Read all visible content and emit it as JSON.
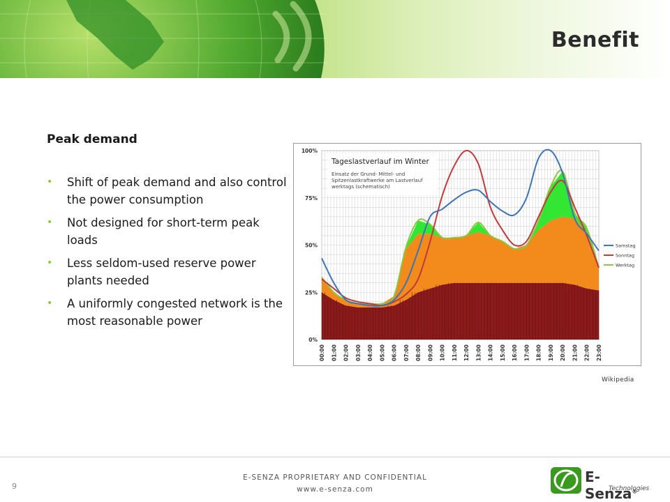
{
  "slide": {
    "title": "Benefit",
    "section_heading": "Peak demand",
    "bullets": [
      "Shift of peak demand and also control the power consumption",
      "Not designed for short-term peak loads",
      "Less seldom-used reserve power plants needed",
      "A uniformly congested network is the most reasonable power"
    ],
    "source_caption": "Wikipedia",
    "page_number": "9"
  },
  "footer": {
    "confidential": "E-SENZA PROPRIETARY AND CONFIDENTIAL",
    "website": "www.e-senza.com"
  },
  "logo": {
    "wordmark": "E-Senza",
    "trademark": "®",
    "subtitle": "Technologies"
  },
  "colors": {
    "accent_green": "#8dc63f",
    "base_load": "#8b1a1a",
    "mid_load": "#f28a1c",
    "peak_load": "#33e633",
    "samstag": "#3f74b4",
    "sonntag": "#c0393b",
    "werktag": "#8dc63f"
  },
  "chart_data": {
    "type": "area",
    "title": "Tageslastverlauf im Winter",
    "subtitle": "Einsatz der Grund- Mittel- und Spitzenlastkraftwerke am Lastverlauf werktags (schematisch)",
    "x": [
      "00:00",
      "01:00",
      "02:00",
      "03:00",
      "04:00",
      "05:00",
      "06:00",
      "07:00",
      "08:00",
      "09:00",
      "10:00",
      "11:00",
      "12:00",
      "13:00",
      "14:00",
      "15:00",
      "16:00",
      "17:00",
      "18:00",
      "19:00",
      "20:00",
      "21:00",
      "22:00",
      "23:00"
    ],
    "y_ticks": [
      "0%",
      "25%",
      "50%",
      "75%",
      "100%"
    ],
    "ylim": [
      0,
      100
    ],
    "grid": true,
    "legend_position": "right",
    "stacked_areas": [
      {
        "values": [
          25,
          21,
          18,
          17,
          17,
          17,
          18,
          21,
          25,
          27,
          29,
          30,
          30,
          30,
          30,
          30,
          30,
          30,
          30,
          30,
          30,
          29,
          27,
          26
        ]
      },
      {
        "values": [
          8,
          4,
          3,
          2,
          2,
          2,
          5,
          27,
          31,
          29,
          25,
          24,
          25,
          27,
          25,
          22,
          18,
          20,
          28,
          33,
          35,
          35,
          30,
          12
        ]
      },
      {
        "values": [
          0,
          0,
          0,
          0,
          0,
          0,
          0,
          1,
          7,
          5,
          0,
          0,
          0,
          5,
          0,
          0,
          0,
          0,
          5,
          18,
          24,
          3,
          2,
          0
        ]
      }
    ],
    "series": [
      {
        "name": "Samstag",
        "values": [
          43,
          30,
          21,
          19,
          18,
          18,
          21,
          30,
          47,
          65,
          69,
          74,
          78,
          79,
          73,
          68,
          66,
          75,
          96,
          100,
          88,
          64,
          56,
          47
        ]
      },
      {
        "name": "Sonntag",
        "values": [
          32,
          27,
          22,
          20,
          19,
          18,
          20,
          24,
          32,
          52,
          76,
          92,
          100,
          93,
          70,
          58,
          50,
          52,
          65,
          78,
          84,
          70,
          55,
          38
        ]
      },
      {
        "name": "Werktag",
        "values": [
          33,
          25,
          21,
          19,
          19,
          19,
          23,
          49,
          63,
          61,
          54,
          54,
          55,
          62,
          55,
          52,
          48,
          50,
          63,
          81,
          89,
          67,
          59,
          38
        ]
      }
    ]
  }
}
